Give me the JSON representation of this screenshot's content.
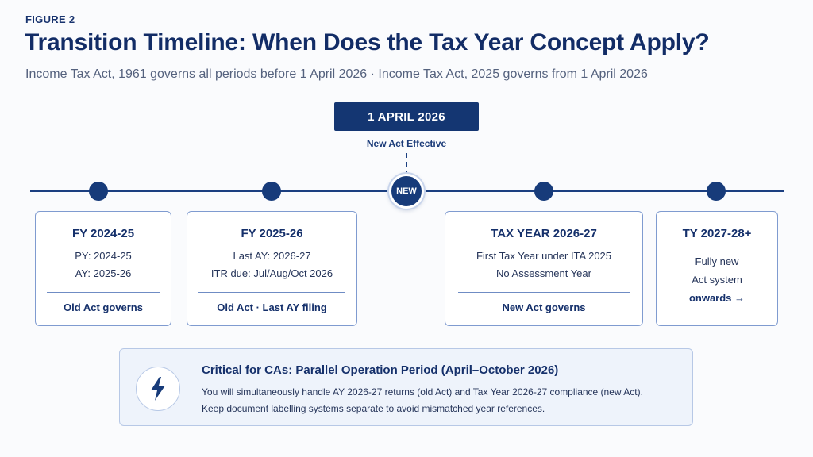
{
  "figure_label": "FIGURE 2",
  "title": "Transition Timeline: When Does the Tax Year Concept Apply?",
  "subtitle": "Income Tax Act, 1961 governs all periods before 1 April 2026 · Income Tax Act, 2025 governs from 1 April 2026",
  "milestone": {
    "date": "1 APRIL 2026",
    "caption": "New Act Effective",
    "marker": "NEW"
  },
  "colors": {
    "navy": "#143672",
    "card_border": "#7f9bd0",
    "callout_bg": "#eef3fb"
  },
  "cards": [
    {
      "title": "FY 2024-25",
      "lines": [
        "PY: 2024-25",
        "AY: 2025-26"
      ],
      "footer": "Old Act governs"
    },
    {
      "title": "FY 2025-26",
      "lines": [
        "Last AY: 2026-27",
        "ITR due: Jul/Aug/Oct 2026"
      ],
      "footer": "Old Act · Last AY filing"
    },
    {
      "title": "TAX YEAR 2026-27",
      "lines": [
        "First Tax Year under ITA 2025",
        "No Assessment Year"
      ],
      "footer": "New Act governs"
    },
    {
      "title": "TY 2027-28+",
      "lines": [
        "Fully new",
        "Act system"
      ],
      "footer": "onwards →"
    }
  ],
  "callout": {
    "icon": "lightning-bolt-icon",
    "title": "Critical for CAs: Parallel Operation Period (April–October 2026)",
    "text1": "You will simultaneously handle AY 2026-27 returns (old Act) and Tax Year 2026-27 compliance (new Act).",
    "text2": "Keep document labelling systems separate to avoid mismatched year references."
  }
}
